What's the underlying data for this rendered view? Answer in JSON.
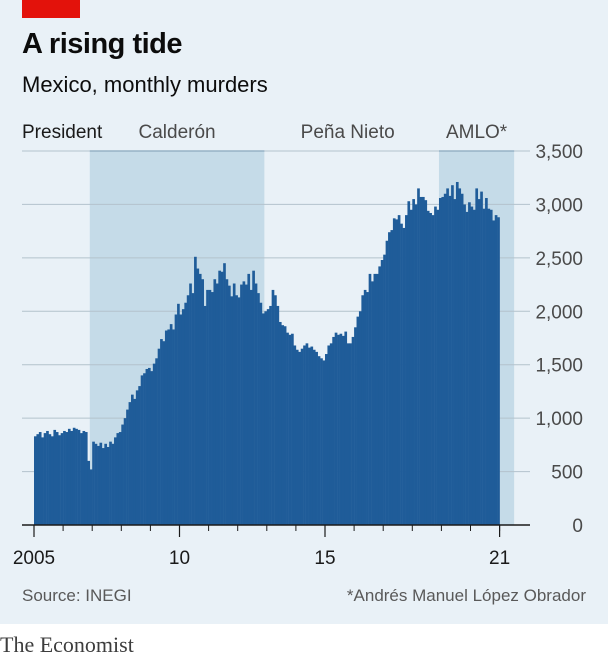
{
  "header": {
    "title": "A rising tide",
    "subtitle": "Mexico, monthly murders"
  },
  "footer": {
    "source": "Source: INEGI",
    "footnote": "*Andrés Manuel López Obrador",
    "brand": "The Economist"
  },
  "colors": {
    "bars": "#1f5c99",
    "band": "#c5dbe8",
    "band_line": "#5e93b8",
    "accent": "#e3120b",
    "panel": "#e9f1f7"
  },
  "chart_data": {
    "type": "bar",
    "title": "A rising tide",
    "subtitle": "Mexico, monthly murders",
    "x_start": "2005-01",
    "x_end": "2021-12",
    "x_ticks": [
      {
        "year": 2005,
        "label": "2005"
      },
      {
        "year": 2010,
        "label": "10"
      },
      {
        "year": 2015,
        "label": "15"
      },
      {
        "year": 2021,
        "label": "21"
      }
    ],
    "ylim": [
      0,
      3500
    ],
    "y_ticks": [
      0,
      500,
      1000,
      1500,
      2000,
      2500,
      3000,
      3500
    ],
    "y_tick_labels": [
      "0",
      "500",
      "1,000",
      "1,500",
      "2,000",
      "2,500",
      "3,000",
      "3,500"
    ],
    "grid": true,
    "bar_axis_label": "President",
    "presidencies": [
      {
        "label": "Calderón",
        "start": "2006-12",
        "end": "2012-11",
        "shaded": true
      },
      {
        "label": "Peña Nieto",
        "start": "2012-12",
        "end": "2018-11",
        "shaded": false
      },
      {
        "label": "AMLO*",
        "start": "2018-12",
        "end": "2021-06",
        "shaded": true
      }
    ],
    "series": [
      {
        "start": "2005-01",
        "values": [
          830,
          850,
          870,
          820,
          860,
          880,
          850,
          830,
          890,
          870,
          840,
          860,
          880,
          870,
          900,
          880,
          910,
          900,
          890,
          860,
          880,
          870,
          600,
          520,
          780,
          760,
          740,
          770,
          720,
          760,
          730,
          780,
          760,
          820,
          860,
          870,
          940,
          1000,
          1080,
          1150,
          1220,
          1180,
          1260,
          1300,
          1400,
          1420,
          1460,
          1470,
          1440,
          1510,
          1560,
          1650,
          1740,
          1720,
          1820,
          1830,
          1880,
          1830,
          1970,
          2070,
          1970,
          2020,
          2080,
          2150,
          2260,
          2170,
          2510,
          2400,
          2350,
          2300,
          2050,
          2200,
          2200,
          2180,
          2300,
          2260,
          2380,
          2370,
          2450,
          2300,
          2240,
          2140,
          2260,
          2150,
          2130,
          2250,
          2280,
          2250,
          2350,
          2200,
          2380,
          2260,
          2170,
          2080,
          1980,
          2000,
          2020,
          2050,
          2200,
          2150,
          2050,
          1900,
          1870,
          1860,
          1800,
          1780,
          1790,
          1680,
          1640,
          1620,
          1650,
          1680,
          1700,
          1660,
          1670,
          1640,
          1620,
          1580,
          1560,
          1540,
          1600,
          1680,
          1700,
          1760,
          1800,
          1780,
          1790,
          1770,
          1810,
          1700,
          1700,
          1760,
          1850,
          1950,
          2000,
          2150,
          2200,
          2180,
          2350,
          2280,
          2350,
          2350,
          2420,
          2480,
          2530,
          2660,
          2740,
          2760,
          2870,
          2860,
          2900,
          2820,
          2780,
          2900,
          3030,
          2950,
          3050,
          3000,
          3150,
          3070,
          3070,
          3040,
          2940,
          2920,
          2900,
          2980,
          2950,
          3060,
          3070,
          3100,
          3150,
          3080,
          3180,
          3050,
          3210,
          3150,
          3100,
          3000,
          2930,
          3020,
          2980,
          2950,
          3150,
          3050,
          3120,
          2960,
          3060,
          2960,
          2950,
          2850,
          2900,
          2880
        ]
      }
    ]
  }
}
